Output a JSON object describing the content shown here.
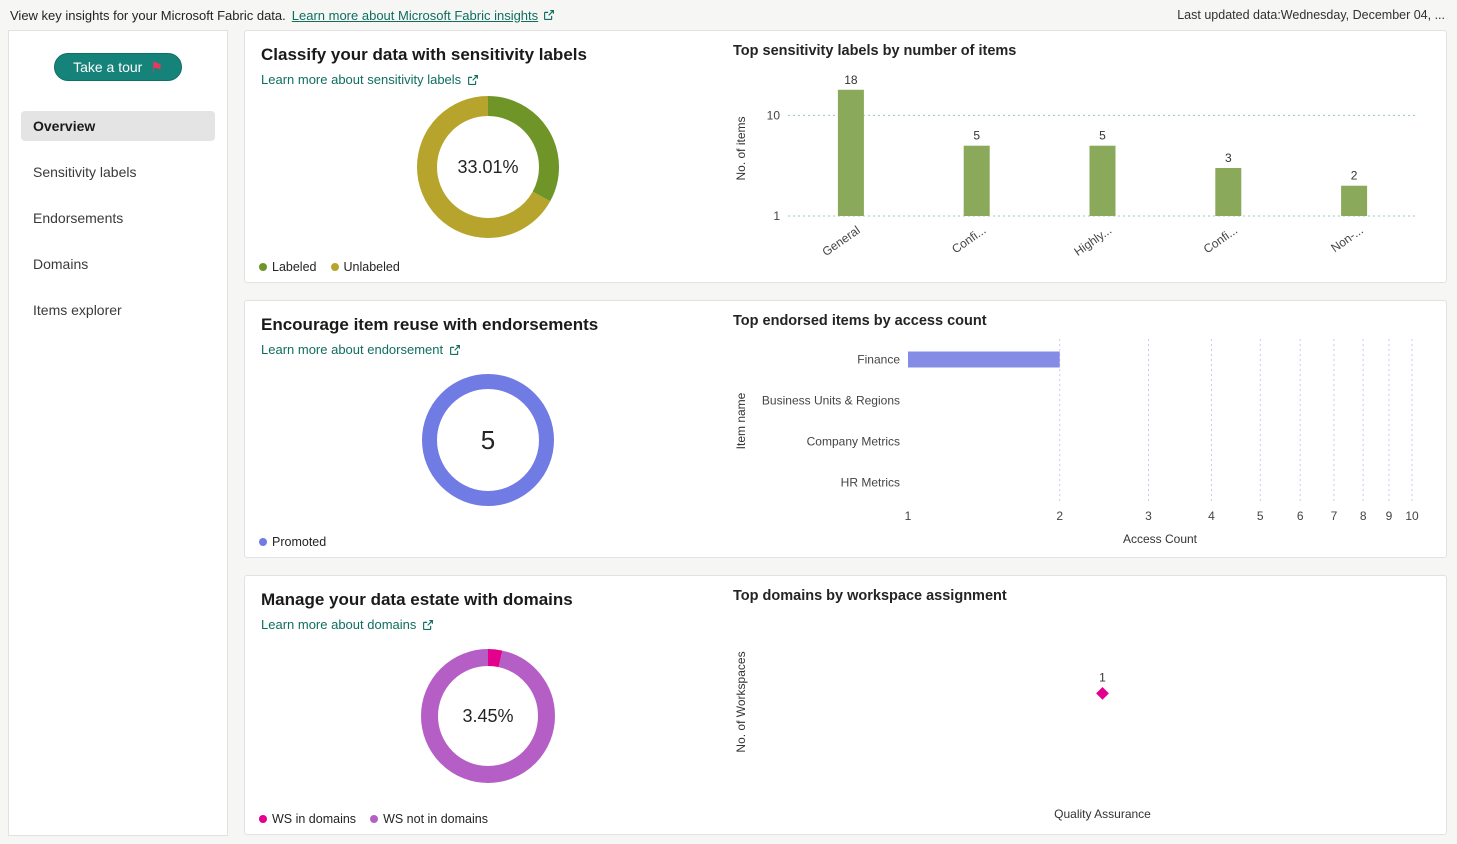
{
  "header": {
    "intro": "View key insights for your Microsoft Fabric data.",
    "learn_more": "Learn more about Microsoft Fabric insights",
    "last_updated": "Last updated data:Wednesday, December 04, ..."
  },
  "sidebar": {
    "tour_button": "Take a tour",
    "items": [
      {
        "label": "Overview",
        "active": true
      },
      {
        "label": "Sensitivity labels",
        "active": false
      },
      {
        "label": "Endorsements",
        "active": false
      },
      {
        "label": "Domains",
        "active": false
      },
      {
        "label": "Items explorer",
        "active": false
      }
    ]
  },
  "cards": [
    {
      "title": "Classify your data with sensitivity labels",
      "link": "Learn more about sensitivity labels"
    },
    {
      "title": "Encourage item reuse with endorsements",
      "link": "Learn more about endorsement"
    },
    {
      "title": "Manage your data estate with domains",
      "link": "Learn more about domains"
    }
  ],
  "colors": {
    "accent_teal": "#15837a",
    "link_teal": "#0f6e5f",
    "labeled_green": "#6f9428",
    "unlabeled_yellow": "#b7a42c",
    "bar_green": "#8aa95a",
    "endorse_blue": "#717be4",
    "hbar_blue": "#858ce6",
    "domain_pink": "#e3008c",
    "domain_purple": "#b55fc6"
  },
  "chart_data": [
    {
      "type": "pie",
      "center_label": "33.01%",
      "slices": [
        {
          "name": "Labeled",
          "value": 33.01,
          "color": "#6f9428"
        },
        {
          "name": "Unlabeled",
          "value": 66.99,
          "color": "#b7a42c"
        }
      ]
    },
    {
      "type": "bar",
      "title": "Top sensitivity labels by number of items",
      "categories": [
        "General",
        "Confi...",
        "Highly...",
        "Confi...",
        "Non-..."
      ],
      "values": [
        18,
        5,
        5,
        3,
        2
      ],
      "ylabel": "No. of items",
      "yscale": "log",
      "yticks": [
        1,
        10
      ],
      "ylim": [
        1,
        22
      ],
      "grid": true,
      "bar_color": "#8aa95a"
    },
    {
      "type": "pie",
      "center_label": "5",
      "slices": [
        {
          "name": "Promoted",
          "value": 5,
          "color": "#717be4"
        }
      ]
    },
    {
      "type": "bar-horizontal",
      "title": "Top endorsed items by access count",
      "categories": [
        "Finance",
        "Business Units & Regions",
        "Company Metrics",
        "HR Metrics"
      ],
      "values": [
        2,
        1,
        1,
        1
      ],
      "xlabel": "Access Count",
      "ylabel": "Item name",
      "xscale": "log",
      "xticks": [
        1,
        2,
        3,
        4,
        5,
        6,
        7,
        8,
        9,
        10
      ],
      "xlim": [
        1,
        10
      ],
      "grid": true,
      "bar_color": "#858ce6"
    },
    {
      "type": "pie",
      "center_label": "3.45%",
      "slices": [
        {
          "name": "WS in domains",
          "value": 3.45,
          "color": "#e3008c"
        },
        {
          "name": "WS not in domains",
          "value": 96.55,
          "color": "#b55fc6"
        }
      ]
    },
    {
      "type": "scatter",
      "title": "Top domains by workspace assignment",
      "categories": [
        "Quality Assurance"
      ],
      "values": [
        1
      ],
      "ylabel": "No. of Workspaces",
      "marker": "diamond",
      "marker_color": "#e3008c"
    }
  ]
}
